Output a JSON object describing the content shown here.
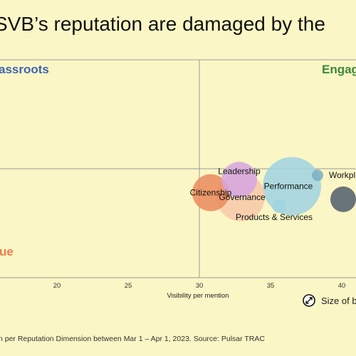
{
  "title": "SVB’s reputation are damaged by the",
  "footnote": "n per Reputation Dimension between Mar 1 – Apr 1, 2023. Source: Pulsar TRAC",
  "colors": {
    "background": "#fbf6c5",
    "axis": "#9a9a9a",
    "grassroots": "#3e64b5",
    "engaged": "#3b8a3b",
    "issue": "#ef7a4e"
  },
  "chart_data": {
    "type": "scatter",
    "title": "SVB’s reputation are damaged by the",
    "xlabel": "Visibility per mention",
    "ylabel": "",
    "x_ticks": [
      20,
      25,
      30,
      35,
      40
    ],
    "xlim": [
      16,
      41
    ],
    "ylim": [
      0,
      100
    ],
    "dividers": {
      "x": 30,
      "y": 50
    },
    "quadrant_labels": [
      {
        "text": "assroots",
        "position": "top-left",
        "color": "#3e64b5"
      },
      {
        "text": "Engag",
        "position": "top-right",
        "color": "#3b8a3b"
      },
      {
        "text": "ue",
        "position": "bottom-left",
        "color": "#ef7a4e"
      }
    ],
    "size_legend_label": "Size of b",
    "points": [
      {
        "label": "Citizenship",
        "x": 30.8,
        "y": 39,
        "size": 26,
        "color": "#ea8a5c"
      },
      {
        "label": "Governance",
        "x": 32.9,
        "y": 37,
        "size": 34,
        "color": "#f6c8a8"
      },
      {
        "label": "Leadership",
        "x": 32.8,
        "y": 45,
        "size": 25,
        "color": "#d6a6e0"
      },
      {
        "label": "Performance",
        "x": 36.5,
        "y": 42,
        "size": 41,
        "color": "#9fd4e2"
      },
      {
        "label": "Products & Services",
        "x": 35.6,
        "y": 33,
        "size": 10,
        "color": "#9fd4e2"
      },
      {
        "label": "Workpl",
        "x": 38.3,
        "y": 47,
        "size": 8,
        "color": "#7aaec4"
      },
      {
        "label": "",
        "x": 40.1,
        "y": 36,
        "size": 18,
        "color": "#4f5d6a"
      }
    ]
  }
}
